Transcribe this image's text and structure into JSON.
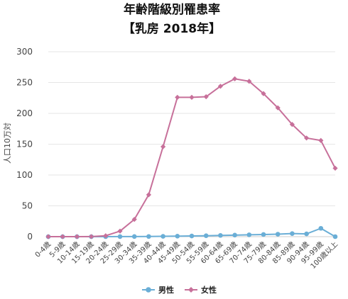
{
  "chart_data": {
    "type": "line",
    "title": "年齢階級別罹患率",
    "subtitle": "【乳房 2018年】",
    "ylabel": "人口10万対",
    "xlabel": "",
    "ylim": [
      0,
      300
    ],
    "yticks": [
      0,
      50,
      100,
      150,
      200,
      250,
      300
    ],
    "grid": true,
    "legend_position": "bottom",
    "categories": [
      "0-4歳",
      "5-9歳",
      "10-14歳",
      "15-19歳",
      "20-24歳",
      "25-29歳",
      "30-34歳",
      "35-39歳",
      "40-44歳",
      "45-49歳",
      "50-54歳",
      "55-59歳",
      "60-64歳",
      "65-69歳",
      "70-74歳",
      "75-79歳",
      "80-84歳",
      "85-89歳",
      "90-94歳",
      "95-99歳",
      "100歳以上"
    ],
    "series": [
      {
        "name": "男性",
        "color": "#6aaed6",
        "marker": "circle",
        "values": [
          0,
          0,
          0,
          0,
          0,
          0.1,
          0.2,
          0.3,
          0.5,
          0.8,
          1.1,
          1.5,
          2.0,
          2.5,
          3.0,
          3.5,
          4.0,
          5.0,
          4.5,
          13.5,
          0
        ]
      },
      {
        "name": "女性",
        "color": "#c7709a",
        "marker": "diamond",
        "values": [
          0,
          0,
          0,
          0.1,
          1.5,
          9,
          28,
          68,
          146,
          226,
          226,
          227,
          244,
          256,
          252,
          232,
          209,
          182,
          160,
          156,
          111
        ]
      }
    ]
  }
}
